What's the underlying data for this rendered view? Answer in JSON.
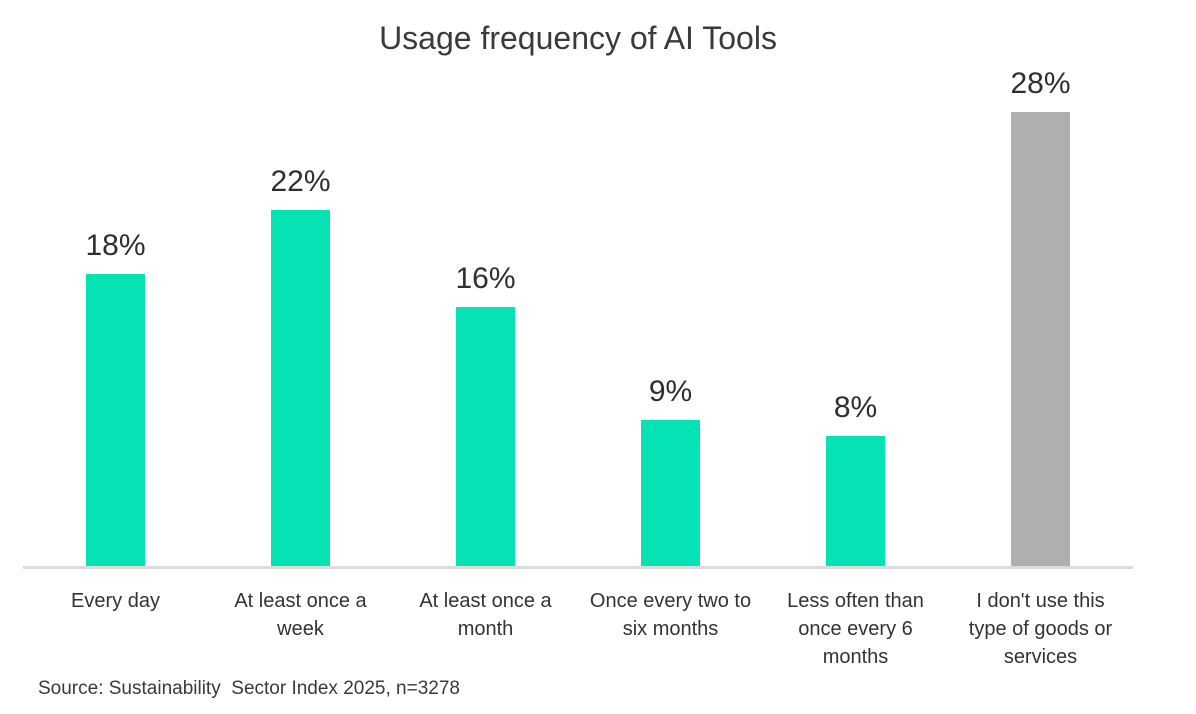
{
  "chart_data": {
    "type": "bar",
    "title": "Usage frequency of AI Tools",
    "categories": [
      "Every day",
      "At least once a week",
      "At least once a month",
      "Once every two to six months",
      "Less often than once every 6 months",
      "I don't use this type of goods or services"
    ],
    "values": [
      18,
      22,
      16,
      9,
      8,
      28
    ],
    "value_labels": [
      "18%",
      "22%",
      "16%",
      "9%",
      "8%",
      "28%"
    ],
    "unit": "%",
    "bar_colors": [
      "#05e2b3",
      "#05e2b3",
      "#05e2b3",
      "#05e2b3",
      "#05e2b3",
      "#afafaf"
    ],
    "accent_color": "#05e2b3",
    "neutral_color": "#afafaf",
    "axis_line_color": "#dbdbdb",
    "text_color": "#333333",
    "xlabel": "",
    "ylabel": "",
    "ylim": [
      0,
      30
    ],
    "grid": false,
    "legend": false,
    "data_labels_position": "above-bars",
    "source_note": "Source: Sustainability  Sector Index 2025, n=3278"
  }
}
